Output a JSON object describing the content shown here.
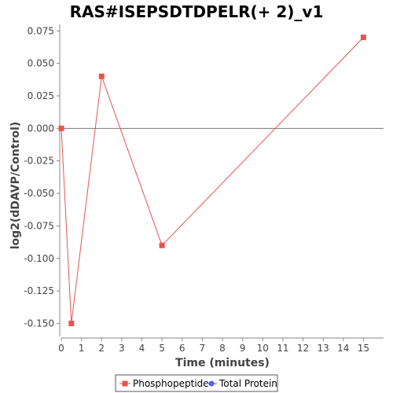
{
  "chart_data": {
    "type": "line",
    "title": "RAS#ISEPSDTDPELR(+ 2)_v1",
    "xlabel": "Time (minutes)",
    "ylabel": "log2(dDAVP/Control)",
    "xlim": [
      0,
      16
    ],
    "ylim": [
      -0.16,
      0.08
    ],
    "x_ticks": [
      0,
      1,
      2,
      3,
      4,
      5,
      6,
      7,
      8,
      9,
      10,
      11,
      12,
      13,
      14,
      15
    ],
    "y_ticks": [
      0.075,
      0.05,
      0.025,
      0.0,
      -0.025,
      -0.05,
      -0.075,
      -0.1,
      -0.125,
      -0.15
    ],
    "y_tick_labels": [
      "0.075",
      "0.050",
      "0.025",
      "0.000",
      "-0.025",
      "-0.050",
      "-0.075",
      "-0.100",
      "-0.125",
      "-0.150"
    ],
    "zero_line": true,
    "grid": false,
    "legend_position": "bottom",
    "series": [
      {
        "name": "Phosphopeptide",
        "color": "#e8534f",
        "marker": "square",
        "x": [
          0,
          0.5,
          2,
          5,
          15
        ],
        "y": [
          0.0,
          -0.15,
          0.04,
          -0.09,
          0.07
        ]
      },
      {
        "name": "Total Protein",
        "color": "#5a5af0",
        "marker": "circle",
        "x": [],
        "y": []
      }
    ]
  }
}
